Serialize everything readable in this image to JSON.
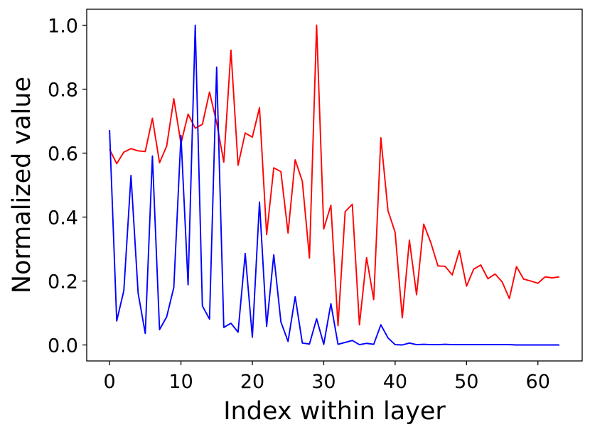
{
  "chart_data": {
    "type": "line",
    "title": "",
    "xlabel": "Index within layer",
    "ylabel": "Normalized value",
    "xlim": [
      -3.2,
      66.2
    ],
    "ylim": [
      -0.05,
      1.05
    ],
    "xticks": [
      0,
      10,
      20,
      30,
      40,
      50,
      60
    ],
    "yticks": [
      0.0,
      0.2,
      0.4,
      0.6,
      0.8,
      1.0
    ],
    "xtick_labels": [
      "0",
      "10",
      "20",
      "30",
      "40",
      "50",
      "60"
    ],
    "ytick_labels": [
      "0.0",
      "0.2",
      "0.4",
      "0.6",
      "0.8",
      "1.0"
    ],
    "grid": false,
    "x": [
      0,
      1,
      2,
      3,
      4,
      5,
      6,
      7,
      8,
      9,
      10,
      11,
      12,
      13,
      14,
      15,
      16,
      17,
      18,
      19,
      20,
      21,
      22,
      23,
      24,
      25,
      26,
      27,
      28,
      29,
      30,
      31,
      32,
      33,
      34,
      35,
      36,
      37,
      38,
      39,
      40,
      41,
      42,
      43,
      44,
      45,
      46,
      47,
      48,
      49,
      50,
      51,
      52,
      53,
      54,
      55,
      56,
      57,
      58,
      59,
      60,
      61,
      62,
      63
    ],
    "series": [
      {
        "color": "#ff0000",
        "values": [
          0.612,
          0.567,
          0.603,
          0.614,
          0.607,
          0.605,
          0.709,
          0.57,
          0.622,
          0.77,
          0.63,
          0.722,
          0.678,
          0.69,
          0.791,
          0.695,
          0.572,
          0.922,
          0.562,
          0.663,
          0.65,
          0.742,
          0.345,
          0.554,
          0.542,
          0.35,
          0.579,
          0.512,
          0.272,
          1.0,
          0.363,
          0.437,
          0.06,
          0.417,
          0.44,
          0.063,
          0.273,
          0.142,
          0.648,
          0.42,
          0.352,
          0.085,
          0.328,
          0.157,
          0.378,
          0.32,
          0.247,
          0.246,
          0.219,
          0.295,
          0.184,
          0.237,
          0.25,
          0.207,
          0.222,
          0.197,
          0.145,
          0.245,
          0.206,
          0.2,
          0.193,
          0.213,
          0.21,
          0.213
        ]
      },
      {
        "color": "#0000ff",
        "values": [
          0.672,
          0.075,
          0.17,
          0.53,
          0.162,
          0.036,
          0.591,
          0.048,
          0.088,
          0.18,
          0.655,
          0.188,
          1.0,
          0.122,
          0.081,
          0.869,
          0.055,
          0.068,
          0.04,
          0.286,
          0.024,
          0.447,
          0.058,
          0.282,
          0.072,
          0.011,
          0.151,
          0.006,
          0.003,
          0.082,
          0.002,
          0.129,
          0.002,
          0.008,
          0.014,
          0.001,
          0.005,
          0.002,
          0.063,
          0.022,
          0.001,
          0.0,
          0.006,
          0.001,
          0.002,
          0.001,
          0.001,
          0.002,
          0.001,
          0.001,
          0.001,
          0.001,
          0.001,
          0.001,
          0.001,
          0.001,
          0.001,
          0.0,
          0.0,
          0.0,
          0.0,
          0.0,
          0.0,
          0.0
        ]
      }
    ]
  }
}
